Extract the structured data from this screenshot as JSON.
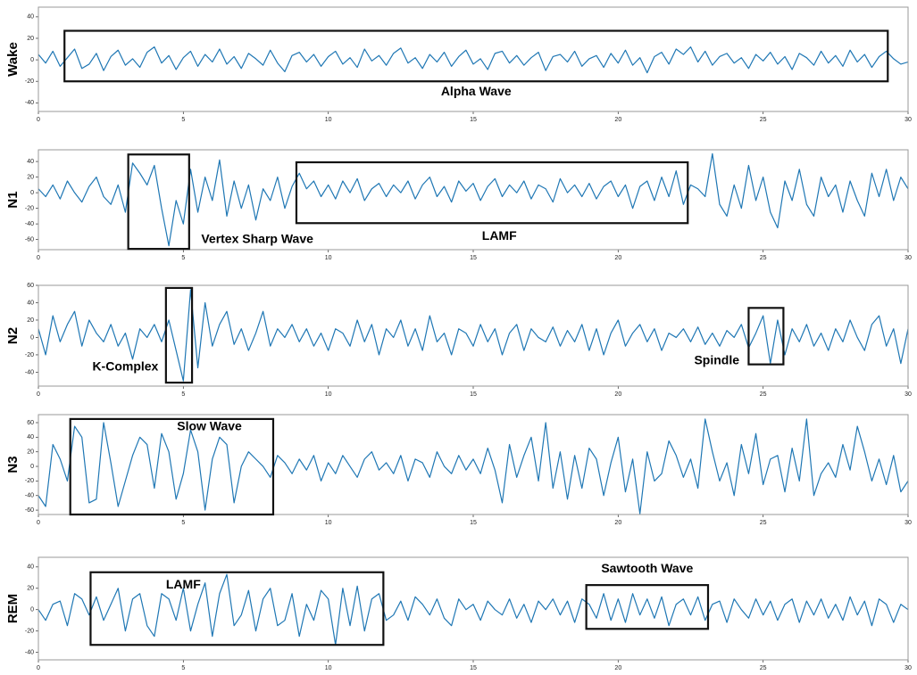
{
  "chart_data": [
    {
      "type": "line",
      "ylabel": "Wake",
      "color": "#1f77b4",
      "x": [
        0,
        0.25,
        0.5,
        0.75,
        1,
        1.25,
        1.5,
        1.75,
        2,
        2.25,
        2.5,
        2.75,
        3,
        3.25,
        3.5,
        3.75,
        4,
        4.25,
        4.5,
        4.75,
        5,
        5.25,
        5.5,
        5.75,
        6,
        6.25,
        6.5,
        6.75,
        7,
        7.25,
        7.5,
        7.75,
        8,
        8.25,
        8.5,
        8.75,
        9,
        9.25,
        9.5,
        9.75,
        10,
        10.25,
        10.5,
        10.75,
        11,
        11.25,
        11.5,
        11.75,
        12,
        12.25,
        12.5,
        12.75,
        13,
        13.25,
        13.5,
        13.75,
        14,
        14.25,
        14.5,
        14.75,
        15,
        15.25,
        15.5,
        15.75,
        16,
        16.25,
        16.5,
        16.75,
        17,
        17.25,
        17.5,
        17.75,
        18,
        18.25,
        18.5,
        18.75,
        19,
        19.25,
        19.5,
        19.75,
        20,
        20.25,
        20.5,
        20.75,
        21,
        21.25,
        21.5,
        21.75,
        22,
        22.25,
        22.5,
        22.75,
        23,
        23.25,
        23.5,
        23.75,
        24,
        24.25,
        24.5,
        24.75,
        25,
        25.25,
        25.5,
        25.75,
        26,
        26.25,
        26.5,
        26.75,
        27,
        27.25,
        27.5,
        27.75,
        28,
        28.25,
        28.5,
        28.75,
        29,
        29.25,
        29.5,
        29.75,
        30
      ],
      "values": [
        5,
        -3,
        8,
        -6,
        2,
        10,
        -8,
        -4,
        6,
        -10,
        3,
        9,
        -5,
        1,
        -7,
        7,
        12,
        -3,
        4,
        -9,
        2,
        8,
        -6,
        5,
        -2,
        10,
        -4,
        3,
        -8,
        6,
        1,
        -5,
        9,
        -3,
        -11,
        4,
        7,
        -2,
        5,
        -6,
        3,
        8,
        -4,
        2,
        -7,
        10,
        -1,
        4,
        -5,
        6,
        11,
        -3,
        2,
        -8,
        5,
        -2,
        7,
        -6,
        3,
        9,
        -4,
        1,
        -9,
        6,
        8,
        -3,
        4,
        -5,
        2,
        7,
        -10,
        3,
        5,
        -2,
        8,
        -6,
        1,
        4,
        -7,
        6,
        -3,
        9,
        -5,
        2,
        -12,
        3,
        7,
        -4,
        10,
        5,
        12,
        -2,
        8,
        -5,
        3,
        6,
        -3,
        2,
        -8,
        5,
        -1,
        7,
        -4,
        3,
        -9,
        6,
        2,
        -5,
        8,
        -3,
        4,
        -6,
        9,
        -2,
        5,
        -7,
        3,
        8,
        1,
        -4,
        -2
      ],
      "xlim": [
        0,
        30
      ],
      "xticks": [
        0,
        5,
        10,
        15,
        20,
        25,
        30
      ],
      "ylim": [
        -48,
        49
      ],
      "yticks": [
        -40,
        -20,
        0,
        20,
        40
      ],
      "annotations": [
        {
          "text": "Alpha Wave",
          "x0": 0.9,
          "x1": 29.3,
          "y0": -20,
          "y1": 27,
          "text_x": 15.1,
          "text_y": -30
        }
      ]
    },
    {
      "type": "line",
      "ylabel": "N1",
      "color": "#1f77b4",
      "x": [
        0,
        0.25,
        0.5,
        0.75,
        1,
        1.25,
        1.5,
        1.75,
        2,
        2.25,
        2.5,
        2.75,
        3,
        3.25,
        3.5,
        3.75,
        4,
        4.25,
        4.5,
        4.75,
        5,
        5.25,
        5.5,
        5.75,
        6,
        6.25,
        6.5,
        6.75,
        7,
        7.25,
        7.5,
        7.75,
        8,
        8.25,
        8.5,
        8.75,
        9,
        9.25,
        9.5,
        9.75,
        10,
        10.25,
        10.5,
        10.75,
        11,
        11.25,
        11.5,
        11.75,
        12,
        12.25,
        12.5,
        12.75,
        13,
        13.25,
        13.5,
        13.75,
        14,
        14.25,
        14.5,
        14.75,
        15,
        15.25,
        15.5,
        15.75,
        16,
        16.25,
        16.5,
        16.75,
        17,
        17.25,
        17.5,
        17.75,
        18,
        18.25,
        18.5,
        18.75,
        19,
        19.25,
        19.5,
        19.75,
        20,
        20.25,
        20.5,
        20.75,
        21,
        21.25,
        21.5,
        21.75,
        22,
        22.25,
        22.5,
        22.75,
        23,
        23.25,
        23.5,
        23.75,
        24,
        24.25,
        24.5,
        24.75,
        25,
        25.25,
        25.5,
        25.75,
        26,
        26.25,
        26.5,
        26.75,
        27,
        27.25,
        27.5,
        27.75,
        28,
        28.25,
        28.5,
        28.75,
        29,
        29.25,
        29.5,
        29.75,
        30
      ],
      "values": [
        5,
        -5,
        10,
        -8,
        15,
        0,
        -12,
        8,
        20,
        -5,
        -15,
        10,
        -25,
        38,
        25,
        10,
        35,
        -20,
        -68,
        -10,
        -40,
        30,
        -25,
        20,
        -10,
        42,
        -30,
        15,
        -20,
        10,
        -35,
        5,
        -10,
        20,
        -20,
        8,
        25,
        5,
        15,
        -5,
        10,
        -8,
        15,
        0,
        18,
        -10,
        5,
        12,
        -5,
        10,
        0,
        15,
        -8,
        10,
        20,
        -5,
        8,
        -12,
        15,
        2,
        12,
        -10,
        8,
        18,
        -5,
        10,
        0,
        15,
        -8,
        10,
        5,
        -12,
        18,
        0,
        10,
        -5,
        12,
        -8,
        8,
        15,
        -5,
        10,
        -20,
        8,
        15,
        -10,
        20,
        -5,
        28,
        -15,
        10,
        5,
        -5,
        50,
        -15,
        -30,
        10,
        -20,
        35,
        -10,
        20,
        -25,
        -45,
        15,
        -10,
        30,
        -15,
        -30,
        20,
        -5,
        10,
        -25,
        15,
        -10,
        -30,
        25,
        -5,
        30,
        -10,
        20,
        5
      ],
      "xlim": [
        0,
        30
      ],
      "xticks": [
        0,
        5,
        10,
        15,
        20,
        25,
        30
      ],
      "ylim": [
        -73,
        55
      ],
      "yticks": [
        -60,
        -40,
        -20,
        0,
        20,
        40
      ],
      "annotations": [
        {
          "text": "Vertex Sharp Wave",
          "x0": 3.1,
          "x1": 5.2,
          "y0": -72,
          "y1": 49,
          "text_x": 7.55,
          "text_y": -60
        },
        {
          "text": "LAMF",
          "x0": 8.9,
          "x1": 22.4,
          "y0": -39,
          "y1": 39,
          "text_x": 15.9,
          "text_y": -56
        }
      ]
    },
    {
      "type": "line",
      "ylabel": "N2",
      "color": "#1f77b4",
      "x": [
        0,
        0.25,
        0.5,
        0.75,
        1,
        1.25,
        1.5,
        1.75,
        2,
        2.25,
        2.5,
        2.75,
        3,
        3.25,
        3.5,
        3.75,
        4,
        4.25,
        4.5,
        4.75,
        5,
        5.25,
        5.5,
        5.75,
        6,
        6.25,
        6.5,
        6.75,
        7,
        7.25,
        7.5,
        7.75,
        8,
        8.25,
        8.5,
        8.75,
        9,
        9.25,
        9.5,
        9.75,
        10,
        10.25,
        10.5,
        10.75,
        11,
        11.25,
        11.5,
        11.75,
        12,
        12.25,
        12.5,
        12.75,
        13,
        13.25,
        13.5,
        13.75,
        14,
        14.25,
        14.5,
        14.75,
        15,
        15.25,
        15.5,
        15.75,
        16,
        16.25,
        16.5,
        16.75,
        17,
        17.25,
        17.5,
        17.75,
        18,
        18.25,
        18.5,
        18.75,
        19,
        19.25,
        19.5,
        19.75,
        20,
        20.25,
        20.5,
        20.75,
        21,
        21.25,
        21.5,
        21.75,
        22,
        22.25,
        22.5,
        22.75,
        23,
        23.25,
        23.5,
        23.75,
        24,
        24.25,
        24.5,
        24.75,
        25,
        25.25,
        25.5,
        25.75,
        26,
        26.25,
        26.5,
        26.75,
        27,
        27.25,
        27.5,
        27.75,
        28,
        28.25,
        28.5,
        28.75,
        29,
        29.25,
        29.5,
        29.75,
        30
      ],
      "values": [
        10,
        -20,
        25,
        -5,
        15,
        30,
        -10,
        20,
        5,
        -5,
        15,
        -10,
        5,
        -25,
        10,
        0,
        15,
        -5,
        20,
        -15,
        -50,
        55,
        -35,
        40,
        -10,
        15,
        30,
        -8,
        10,
        -15,
        5,
        30,
        -10,
        10,
        0,
        15,
        -5,
        10,
        -10,
        5,
        -15,
        10,
        5,
        -10,
        20,
        -5,
        15,
        -20,
        10,
        0,
        20,
        -10,
        10,
        -15,
        25,
        -5,
        5,
        -20,
        10,
        5,
        -10,
        15,
        -5,
        10,
        -20,
        5,
        15,
        -15,
        10,
        0,
        -5,
        12,
        -10,
        8,
        -5,
        15,
        -15,
        10,
        -20,
        5,
        20,
        -10,
        5,
        15,
        -5,
        10,
        -15,
        5,
        0,
        10,
        -5,
        12,
        -8,
        5,
        -10,
        8,
        0,
        15,
        -12,
        5,
        25,
        -30,
        20,
        -20,
        10,
        -5,
        15,
        -10,
        5,
        -15,
        10,
        -5,
        20,
        0,
        -15,
        15,
        25,
        -10,
        10,
        -30,
        10
      ],
      "xlim": [
        0,
        30
      ],
      "xticks": [
        0,
        5,
        10,
        15,
        20,
        25,
        30
      ],
      "ylim": [
        -56,
        60
      ],
      "yticks": [
        -40,
        -20,
        0,
        20,
        40,
        60
      ],
      "annotations": [
        {
          "text": "K-Complex",
          "x0": 4.4,
          "x1": 5.3,
          "y0": -52,
          "y1": 57,
          "text_x": 3.0,
          "text_y": -34
        },
        {
          "text": "Spindle",
          "x0": 24.5,
          "x1": 25.7,
          "y0": -31,
          "y1": 34,
          "text_x": 23.4,
          "text_y": -27
        }
      ]
    },
    {
      "type": "line",
      "ylabel": "N3",
      "color": "#1f77b4",
      "x": [
        0,
        0.25,
        0.5,
        0.75,
        1,
        1.25,
        1.5,
        1.75,
        2,
        2.25,
        2.5,
        2.75,
        3,
        3.25,
        3.5,
        3.75,
        4,
        4.25,
        4.5,
        4.75,
        5,
        5.25,
        5.5,
        5.75,
        6,
        6.25,
        6.5,
        6.75,
        7,
        7.25,
        7.5,
        7.75,
        8,
        8.25,
        8.5,
        8.75,
        9,
        9.25,
        9.5,
        9.75,
        10,
        10.25,
        10.5,
        10.75,
        11,
        11.25,
        11.5,
        11.75,
        12,
        12.25,
        12.5,
        12.75,
        13,
        13.25,
        13.5,
        13.75,
        14,
        14.25,
        14.5,
        14.75,
        15,
        15.25,
        15.5,
        15.75,
        16,
        16.25,
        16.5,
        16.75,
        17,
        17.25,
        17.5,
        17.75,
        18,
        18.25,
        18.5,
        18.75,
        19,
        19.25,
        19.5,
        19.75,
        20,
        20.25,
        20.5,
        20.75,
        21,
        21.25,
        21.5,
        21.75,
        22,
        22.25,
        22.5,
        22.75,
        23,
        23.25,
        23.5,
        23.75,
        24,
        24.25,
        24.5,
        24.75,
        25,
        25.25,
        25.5,
        25.75,
        26,
        26.25,
        26.5,
        26.75,
        27,
        27.25,
        27.5,
        27.75,
        28,
        28.25,
        28.5,
        28.75,
        29,
        29.25,
        29.5,
        29.75,
        30
      ],
      "values": [
        -40,
        -55,
        30,
        10,
        -20,
        55,
        40,
        -50,
        -45,
        60,
        5,
        -55,
        -20,
        15,
        40,
        30,
        -30,
        45,
        20,
        -45,
        -10,
        50,
        20,
        -60,
        10,
        40,
        30,
        -50,
        0,
        20,
        10,
        0,
        -15,
        15,
        5,
        -10,
        10,
        -5,
        15,
        -20,
        5,
        -10,
        15,
        0,
        -15,
        10,
        20,
        -5,
        5,
        -10,
        15,
        -20,
        10,
        5,
        -15,
        20,
        0,
        -10,
        15,
        -5,
        10,
        -10,
        25,
        -5,
        -50,
        30,
        -15,
        15,
        40,
        -20,
        60,
        -30,
        20,
        -45,
        15,
        -30,
        25,
        10,
        -40,
        5,
        40,
        -35,
        10,
        -65,
        20,
        -20,
        -10,
        35,
        15,
        -15,
        10,
        -30,
        65,
        20,
        -20,
        5,
        -40,
        30,
        -10,
        45,
        -25,
        10,
        15,
        -35,
        25,
        -20,
        65,
        -40,
        -10,
        5,
        -15,
        30,
        -5,
        55,
        20,
        -20,
        10,
        -25,
        15,
        -35,
        -20
      ],
      "xlim": [
        0,
        30
      ],
      "xticks": [
        0,
        5,
        10,
        15,
        20,
        25,
        30
      ],
      "ylim": [
        -66,
        71
      ],
      "yticks": [
        -60,
        -40,
        -20,
        0,
        20,
        40,
        60
      ],
      "annotations": [
        {
          "text": "Slow Wave",
          "x0": 1.1,
          "x1": 8.1,
          "y0": -66,
          "y1": 65,
          "text_x": 5.9,
          "text_y": 54
        }
      ]
    },
    {
      "type": "line",
      "ylabel": "REM",
      "color": "#1f77b4",
      "x": [
        0,
        0.25,
        0.5,
        0.75,
        1,
        1.25,
        1.5,
        1.75,
        2,
        2.25,
        2.5,
        2.75,
        3,
        3.25,
        3.5,
        3.75,
        4,
        4.25,
        4.5,
        4.75,
        5,
        5.25,
        5.5,
        5.75,
        6,
        6.25,
        6.5,
        6.75,
        7,
        7.25,
        7.5,
        7.75,
        8,
        8.25,
        8.5,
        8.75,
        9,
        9.25,
        9.5,
        9.75,
        10,
        10.25,
        10.5,
        10.75,
        11,
        11.25,
        11.5,
        11.75,
        12,
        12.25,
        12.5,
        12.75,
        13,
        13.25,
        13.5,
        13.75,
        14,
        14.25,
        14.5,
        14.75,
        15,
        15.25,
        15.5,
        15.75,
        16,
        16.25,
        16.5,
        16.75,
        17,
        17.25,
        17.5,
        17.75,
        18,
        18.25,
        18.5,
        18.75,
        19,
        19.25,
        19.5,
        19.75,
        20,
        20.25,
        20.5,
        20.75,
        21,
        21.25,
        21.5,
        21.75,
        22,
        22.25,
        22.5,
        22.75,
        23,
        23.25,
        23.5,
        23.75,
        24,
        24.25,
        24.5,
        24.75,
        25,
        25.25,
        25.5,
        25.75,
        26,
        26.25,
        26.5,
        26.75,
        27,
        27.25,
        27.5,
        27.75,
        28,
        28.25,
        28.5,
        28.75,
        29,
        29.25,
        29.5,
        29.75,
        30
      ],
      "values": [
        0,
        -10,
        5,
        8,
        -15,
        15,
        10,
        -5,
        12,
        -10,
        5,
        20,
        -20,
        10,
        15,
        -15,
        -25,
        15,
        10,
        -10,
        20,
        -20,
        5,
        25,
        -25,
        15,
        33,
        -15,
        -5,
        18,
        -20,
        10,
        20,
        -15,
        -10,
        15,
        -25,
        5,
        -10,
        18,
        10,
        -33,
        20,
        -15,
        22,
        -20,
        10,
        15,
        -10,
        -5,
        8,
        -10,
        12,
        5,
        -5,
        10,
        -8,
        -15,
        10,
        0,
        5,
        -10,
        8,
        0,
        -5,
        10,
        -8,
        5,
        -12,
        8,
        0,
        10,
        -5,
        8,
        -12,
        10,
        5,
        -8,
        15,
        -10,
        10,
        -12,
        15,
        -5,
        10,
        -8,
        12,
        -15,
        5,
        10,
        -5,
        12,
        -10,
        5,
        8,
        -12,
        10,
        0,
        -8,
        10,
        -5,
        8,
        -10,
        5,
        10,
        -12,
        8,
        -5,
        10,
        -8,
        5,
        -10,
        12,
        -5,
        8,
        -15,
        10,
        5,
        -12,
        5,
        0
      ],
      "xlim": [
        0,
        30
      ],
      "xticks": [
        0,
        5,
        10,
        15,
        20,
        25,
        30
      ],
      "ylim": [
        -47,
        49
      ],
      "yticks": [
        -40,
        -20,
        0,
        20,
        40
      ],
      "annotations": [
        {
          "text": "LAMF",
          "x0": 1.8,
          "x1": 11.9,
          "y0": -33,
          "y1": 35,
          "text_x": 5.0,
          "text_y": 23
        },
        {
          "text": "Sawtooth Wave",
          "x0": 18.9,
          "x1": 23.1,
          "y0": -18,
          "y1": 23,
          "text_x": 21.0,
          "text_y": 38
        }
      ]
    }
  ]
}
